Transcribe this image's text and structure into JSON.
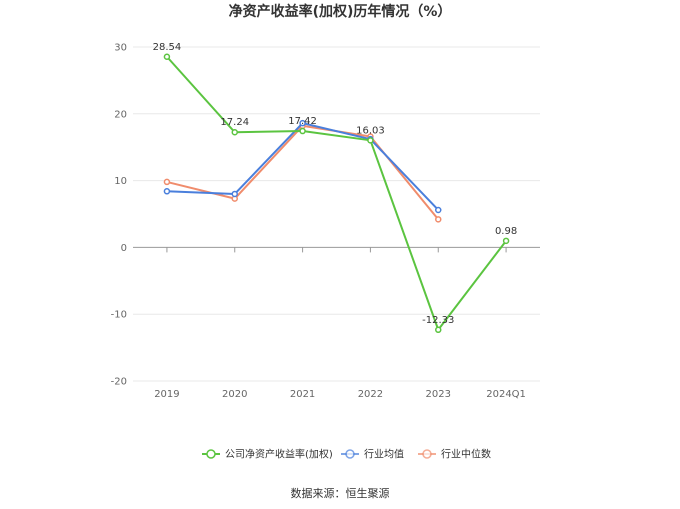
{
  "chart_data": {
    "type": "line",
    "title": "净资产收益率(加权)历年情况（%）",
    "categories": [
      "2019",
      "2020",
      "2021",
      "2022",
      "2023",
      "2024Q1"
    ],
    "yticks": [
      "30",
      "20",
      "10",
      "0",
      "-10",
      "-20"
    ],
    "ylim": [
      -20,
      30
    ],
    "grid": true,
    "legend_position": "bottom",
    "series": [
      {
        "name": "公司净资产收益率(加权)",
        "color": "#5bc440",
        "values": [
          28.54,
          17.24,
          17.42,
          16.03,
          -12.33,
          0.98
        ],
        "labels": [
          "28.54",
          "17.24",
          "17.42",
          "16.03",
          "-12.33",
          "0.98"
        ]
      },
      {
        "name": "行业均值",
        "color": "#4a7fdc",
        "values": [
          8.4,
          8.0,
          18.6,
          16.2,
          5.6,
          null
        ]
      },
      {
        "name": "行业中位数",
        "color": "#f08c6c",
        "values": [
          9.8,
          7.3,
          18.2,
          16.6,
          4.2,
          null
        ]
      }
    ],
    "source": "数据来源：恒生聚源"
  }
}
